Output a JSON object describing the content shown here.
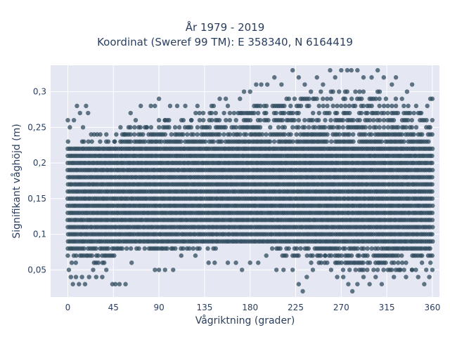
{
  "chart_data": {
    "type": "scatter",
    "title": "År 1979 - 2019",
    "subtitle": "Koordinat (Sweref 99 TM): E 358340, N 6164419",
    "xlabel": "Vågriktning (grader)",
    "ylabel": "Signifikant våghöjd (m)",
    "xlim": [
      -17,
      367
    ],
    "ylim": [
      0.012,
      0.337
    ],
    "x_ticks": [
      0,
      45,
      90,
      135,
      180,
      225,
      270,
      315,
      360
    ],
    "y_ticks": [
      0.05,
      0.1,
      0.15,
      0.2,
      0.25,
      0.3
    ],
    "y_tick_labels": [
      "0,05",
      "0,1",
      "0,15",
      "0,2",
      "0,25",
      "0,3"
    ],
    "grid": true,
    "marker_color": "#2f4b5e",
    "background": "#e5e8f2",
    "dense_band": [
      {
        "direction_range": [
          0,
          360
        ],
        "height_range": [
          0.09,
          0.22
        ],
        "density": "very high"
      }
    ],
    "band_upper_edge": [
      {
        "direction": 0,
        "height": 0.23
      },
      {
        "direction": 30,
        "height": 0.23
      },
      {
        "direction": 60,
        "height": 0.25
      },
      {
        "direction": 90,
        "height": 0.26
      },
      {
        "direction": 120,
        "height": 0.27
      },
      {
        "direction": 150,
        "height": 0.27
      },
      {
        "direction": 180,
        "height": 0.28
      },
      {
        "direction": 210,
        "height": 0.29
      },
      {
        "direction": 240,
        "height": 0.3
      },
      {
        "direction": 270,
        "height": 0.3
      },
      {
        "direction": 300,
        "height": 0.31
      },
      {
        "direction": 330,
        "height": 0.29
      },
      {
        "direction": 360,
        "height": 0.26
      }
    ],
    "band_lower_edge": [
      {
        "direction": 0,
        "height": 0.06
      },
      {
        "direction": 30,
        "height": 0.05
      },
      {
        "direction": 60,
        "height": 0.08
      },
      {
        "direction": 90,
        "height": 0.07
      },
      {
        "direction": 120,
        "height": 0.08
      },
      {
        "direction": 150,
        "height": 0.08
      },
      {
        "direction": 180,
        "height": 0.09
      },
      {
        "direction": 210,
        "height": 0.07
      },
      {
        "direction": 240,
        "height": 0.06
      },
      {
        "direction": 270,
        "height": 0.05
      },
      {
        "direction": 300,
        "height": 0.05
      },
      {
        "direction": 330,
        "height": 0.05
      },
      {
        "direction": 360,
        "height": 0.05
      }
    ],
    "outliers": [
      {
        "x": 0,
        "y": 0.26
      },
      {
        "x": 2,
        "y": 0.25
      },
      {
        "x": 6,
        "y": 0.26
      },
      {
        "x": 9,
        "y": 0.28
      },
      {
        "x": 12,
        "y": 0.27
      },
      {
        "x": 15,
        "y": 0.25
      },
      {
        "x": 18,
        "y": 0.28
      },
      {
        "x": 20,
        "y": 0.27
      },
      {
        "x": 23,
        "y": 0.24
      },
      {
        "x": 26,
        "y": 0.24
      },
      {
        "x": 29,
        "y": 0.24
      },
      {
        "x": 32,
        "y": 0.24
      },
      {
        "x": 38,
        "y": 0.24
      },
      {
        "x": 40,
        "y": 0.23
      },
      {
        "x": 46,
        "y": 0.23
      },
      {
        "x": 52,
        "y": 0.25
      },
      {
        "x": 56,
        "y": 0.24
      },
      {
        "x": 60,
        "y": 0.25
      },
      {
        "x": 62,
        "y": 0.27
      },
      {
        "x": 67,
        "y": 0.26
      },
      {
        "x": 70,
        "y": 0.25
      },
      {
        "x": 72,
        "y": 0.28
      },
      {
        "x": 78,
        "y": 0.25
      },
      {
        "x": 82,
        "y": 0.28
      },
      {
        "x": 86,
        "y": 0.28
      },
      {
        "x": 90,
        "y": 0.29
      },
      {
        "x": 96,
        "y": 0.26
      },
      {
        "x": 101,
        "y": 0.28
      },
      {
        "x": 108,
        "y": 0.28
      },
      {
        "x": 116,
        "y": 0.28
      },
      {
        "x": 122,
        "y": 0.26
      },
      {
        "x": 128,
        "y": 0.28
      },
      {
        "x": 130,
        "y": 0.27
      },
      {
        "x": 142,
        "y": 0.28
      },
      {
        "x": 144,
        "y": 0.28
      },
      {
        "x": 150,
        "y": 0.29
      },
      {
        "x": 156,
        "y": 0.29
      },
      {
        "x": 158,
        "y": 0.28
      },
      {
        "x": 170,
        "y": 0.29
      },
      {
        "x": 174,
        "y": 0.3
      },
      {
        "x": 180,
        "y": 0.3
      },
      {
        "x": 186,
        "y": 0.31
      },
      {
        "x": 191,
        "y": 0.31
      },
      {
        "x": 197,
        "y": 0.31
      },
      {
        "x": 204,
        "y": 0.32
      },
      {
        "x": 211,
        "y": 0.31
      },
      {
        "x": 222,
        "y": 0.33
      },
      {
        "x": 228,
        "y": 0.32
      },
      {
        "x": 234,
        "y": 0.31
      },
      {
        "x": 246,
        "y": 0.32
      },
      {
        "x": 252,
        "y": 0.31
      },
      {
        "x": 259,
        "y": 0.33
      },
      {
        "x": 264,
        "y": 0.32
      },
      {
        "x": 270,
        "y": 0.33
      },
      {
        "x": 276,
        "y": 0.33
      },
      {
        "x": 280,
        "y": 0.33
      },
      {
        "x": 286,
        "y": 0.33
      },
      {
        "x": 292,
        "y": 0.32
      },
      {
        "x": 300,
        "y": 0.32
      },
      {
        "x": 306,
        "y": 0.33
      },
      {
        "x": 312,
        "y": 0.32
      },
      {
        "x": 320,
        "y": 0.31
      },
      {
        "x": 324,
        "y": 0.32
      },
      {
        "x": 330,
        "y": 0.29
      },
      {
        "x": 335,
        "y": 0.3
      },
      {
        "x": 340,
        "y": 0.31
      },
      {
        "x": 344,
        "y": 0.28
      },
      {
        "x": 349,
        "y": 0.27
      },
      {
        "x": 355,
        "y": 0.28
      },
      {
        "x": 358,
        "y": 0.29
      },
      {
        "x": 360,
        "y": 0.29
      },
      {
        "x": 1,
        "y": 0.05
      },
      {
        "x": 3,
        "y": 0.04
      },
      {
        "x": 5,
        "y": 0.03
      },
      {
        "x": 8,
        "y": 0.04
      },
      {
        "x": 11,
        "y": 0.03
      },
      {
        "x": 14,
        "y": 0.04
      },
      {
        "x": 17,
        "y": 0.03
      },
      {
        "x": 21,
        "y": 0.04
      },
      {
        "x": 25,
        "y": 0.05
      },
      {
        "x": 28,
        "y": 0.04
      },
      {
        "x": 34,
        "y": 0.04
      },
      {
        "x": 38,
        "y": 0.05
      },
      {
        "x": 44,
        "y": 0.03
      },
      {
        "x": 47,
        "y": 0.03
      },
      {
        "x": 51,
        "y": 0.03
      },
      {
        "x": 57,
        "y": 0.03
      },
      {
        "x": 63,
        "y": 0.06
      },
      {
        "x": 86,
        "y": 0.05
      },
      {
        "x": 90,
        "y": 0.05
      },
      {
        "x": 96,
        "y": 0.05
      },
      {
        "x": 104,
        "y": 0.05
      },
      {
        "x": 112,
        "y": 0.07
      },
      {
        "x": 126,
        "y": 0.07
      },
      {
        "x": 139,
        "y": 0.06
      },
      {
        "x": 145,
        "y": 0.06
      },
      {
        "x": 158,
        "y": 0.06
      },
      {
        "x": 166,
        "y": 0.06
      },
      {
        "x": 172,
        "y": 0.05
      },
      {
        "x": 180,
        "y": 0.06
      },
      {
        "x": 188,
        "y": 0.06
      },
      {
        "x": 196,
        "y": 0.07
      },
      {
        "x": 206,
        "y": 0.05
      },
      {
        "x": 213,
        "y": 0.05
      },
      {
        "x": 222,
        "y": 0.05
      },
      {
        "x": 228,
        "y": 0.03
      },
      {
        "x": 232,
        "y": 0.02
      },
      {
        "x": 236,
        "y": 0.04
      },
      {
        "x": 242,
        "y": 0.05
      },
      {
        "x": 248,
        "y": 0.06
      },
      {
        "x": 254,
        "y": 0.07
      },
      {
        "x": 260,
        "y": 0.05
      },
      {
        "x": 266,
        "y": 0.04
      },
      {
        "x": 272,
        "y": 0.04
      },
      {
        "x": 277,
        "y": 0.03
      },
      {
        "x": 281,
        "y": 0.02
      },
      {
        "x": 286,
        "y": 0.03
      },
      {
        "x": 292,
        "y": 0.04
      },
      {
        "x": 298,
        "y": 0.03
      },
      {
        "x": 304,
        "y": 0.04
      },
      {
        "x": 310,
        "y": 0.03
      },
      {
        "x": 316,
        "y": 0.05
      },
      {
        "x": 322,
        "y": 0.04
      },
      {
        "x": 328,
        "y": 0.05
      },
      {
        "x": 334,
        "y": 0.04
      },
      {
        "x": 340,
        "y": 0.05
      },
      {
        "x": 346,
        "y": 0.04
      },
      {
        "x": 352,
        "y": 0.03
      },
      {
        "x": 357,
        "y": 0.04
      },
      {
        "x": 360,
        "y": 0.05
      }
    ]
  }
}
